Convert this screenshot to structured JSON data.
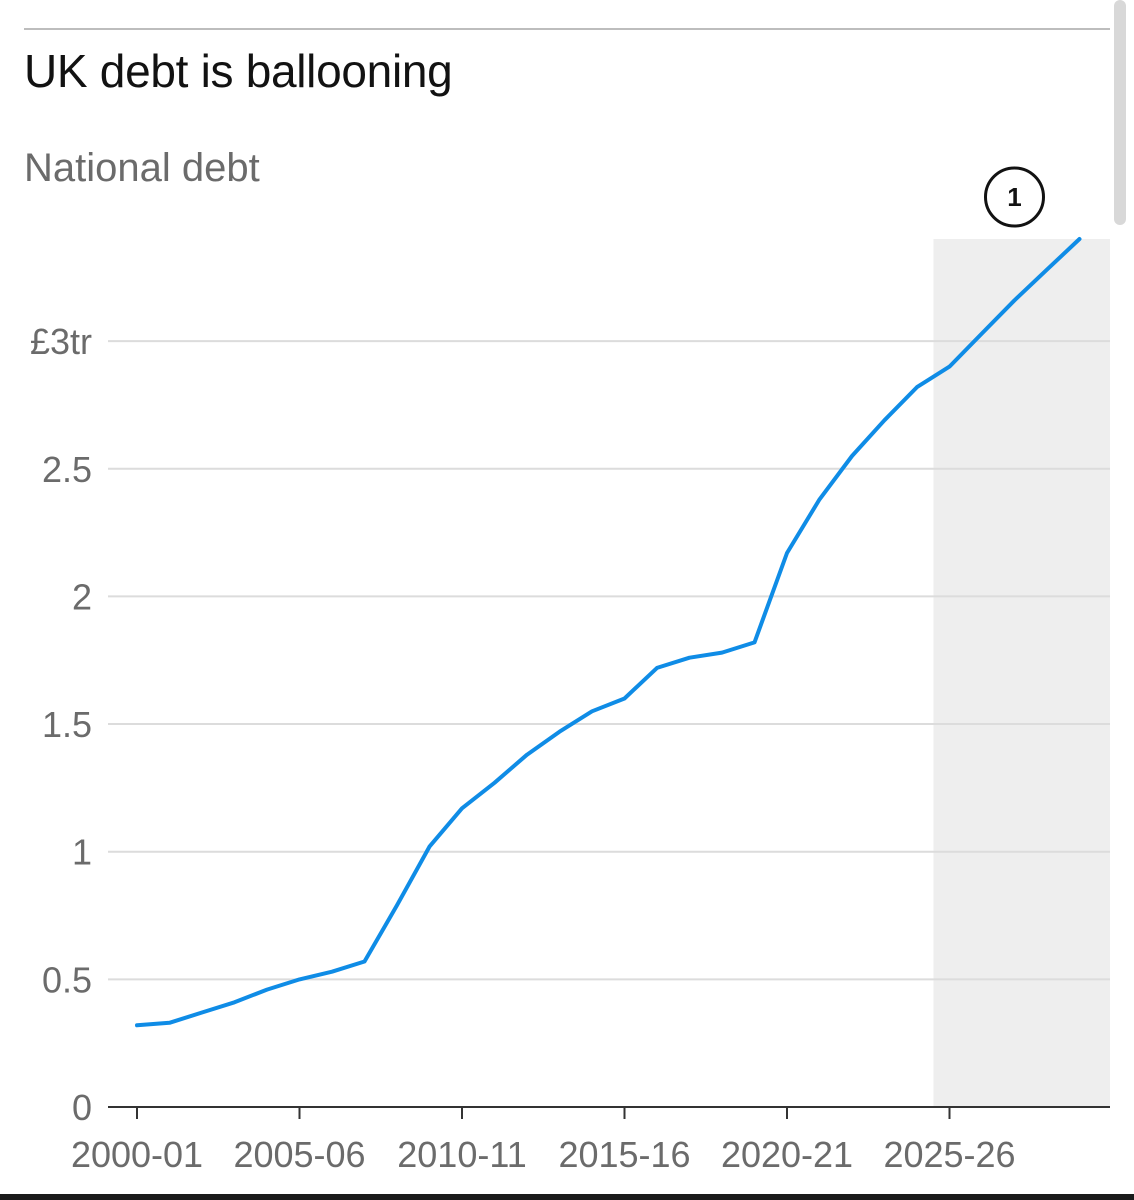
{
  "chart_data": {
    "type": "line",
    "title": "UK debt is ballooning",
    "subtitle": "National debt",
    "xlabel": "",
    "ylabel": "",
    "y_tick_labels": [
      "0",
      "0.5",
      "1",
      "1.5",
      "2",
      "2.5",
      "£3tr"
    ],
    "y_ticks": [
      0,
      0.5,
      1,
      1.5,
      2,
      2.5,
      3
    ],
    "ylim": [
      0,
      3.4
    ],
    "x_tick_labels": [
      "2000-01",
      "2005-06",
      "2010-11",
      "2015-16",
      "2020-21",
      "2025-26"
    ],
    "x": [
      "2000-01",
      "2001-02",
      "2002-03",
      "2003-04",
      "2004-05",
      "2005-06",
      "2006-07",
      "2007-08",
      "2008-09",
      "2009-10",
      "2010-11",
      "2011-12",
      "2012-13",
      "2013-14",
      "2014-15",
      "2015-16",
      "2016-17",
      "2017-18",
      "2018-19",
      "2019-20",
      "2020-21",
      "2021-22",
      "2022-23",
      "2023-24",
      "2024-25",
      "2025-26",
      "2026-27",
      "2027-28",
      "2028-29",
      "2029-30"
    ],
    "series": [
      {
        "values": [
          0.32,
          0.33,
          0.37,
          0.41,
          0.46,
          0.5,
          0.53,
          0.57,
          0.79,
          1.02,
          1.17,
          1.27,
          1.38,
          1.47,
          1.55,
          1.6,
          1.72,
          1.76,
          1.78,
          1.82,
          2.17,
          2.38,
          2.55,
          2.69,
          2.82,
          2.9,
          3.03,
          3.16,
          3.28,
          3.4
        ],
        "color": "#0f8ce6"
      }
    ],
    "forecast_shading": {
      "from": "2025-26",
      "to": "2029-30",
      "color": "#eeeeee"
    },
    "annotation": {
      "label": "1",
      "at": "2025-26"
    },
    "grid": true,
    "legend": "none"
  }
}
